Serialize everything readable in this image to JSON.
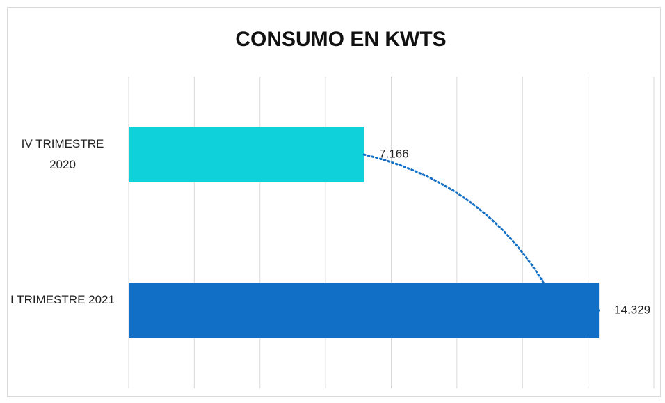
{
  "chart_data": {
    "type": "barh",
    "title": "CONSUMO EN KWTS",
    "categories": [
      "IV TRIMESTRE 2020",
      "I TRIMESTRE 2021"
    ],
    "values": [
      7166,
      14329
    ],
    "value_labels": [
      "7.166",
      "14.329"
    ],
    "colors": [
      "#0fd1d9",
      "#1170c6"
    ],
    "xlim": [
      0,
      16000
    ],
    "xticks": [
      0,
      2000,
      4000,
      6000,
      8000,
      10000,
      12000,
      14000,
      16000
    ],
    "grid": true,
    "trendline": true
  }
}
